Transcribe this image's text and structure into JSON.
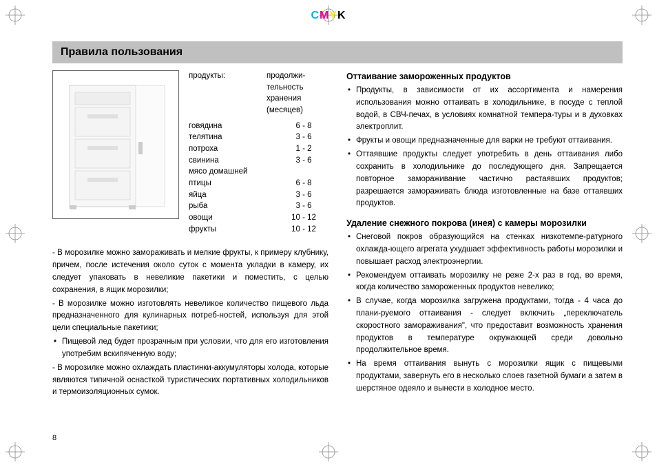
{
  "header": {
    "cmyk": {
      "c": "C",
      "m": "M",
      "y": "Y",
      "k": "K"
    }
  },
  "section_title": "Правила пользования",
  "storage_table": {
    "header": {
      "products": "продукты:",
      "duration": "продолжи-\nтельность хранения (месяцев)"
    },
    "rows": [
      {
        "name": "говядина",
        "months": "6 - 8"
      },
      {
        "name": "телятина",
        "months": "3 - 6"
      },
      {
        "name": "потроха",
        "months": "1 - 2"
      },
      {
        "name": "свинина",
        "months": "3 - 6"
      },
      {
        "name": "мясо домашней",
        "months": ""
      },
      {
        "name": "птицы",
        "months": "6 - 8"
      },
      {
        "name": "яйца",
        "months": "3 - 6"
      },
      {
        "name": "рыба",
        "months": "3 - 6"
      },
      {
        "name": "овощи",
        "months": "10 - 12"
      },
      {
        "name": "фрукты",
        "months": "10 - 12"
      }
    ]
  },
  "left_body": {
    "p1": "- В морозилке можно замораживать и мелкие фрукты, к примеру клубнику, причем, после истечения около суток с момента укладки в камеру, их следует упаковать в невеликие пакетики и поместить, с целью сохранения, в  ящик морозилки;",
    "p2": "- В морозилке можно изготовлять невеликое количество пищевого льда предназначенного для кулинарных потреб-ностей, используя для этой цели специальные пакетики;",
    "b1": "Пищевой лед будет прозрачным при условии, что для его изготовления употребим вскипяченную воду;",
    "p3": "- В морозилке можно охлаждать пластинки-аккумуляторы холода, которые являются типичной оснасткой туристических портативных холодильников и термоизоляционных сумок."
  },
  "right_col": {
    "h1": "Оттаивание замороженных продуктов",
    "s1": {
      "b1": "Продукты, в зависимости от их ассортимента и намерения использования можно оттаивать в холодильнике, в посуде с теплой водой, в СВЧ-печах, в условиях комнатной темпера-туры и в духовках электроплит.",
      "b2": "Фрукты и овощи предназначенные для варки не требуют оттаивания.",
      "b3": "Оттаявшие продукты следует употребить в день оттаивания либо сохранить в холодильнике до последующего дня. Запрещается повторное замораживание частично растаявших продуктов; разрешается замораживать блюда изготовленные на базе оттаявших продуктов."
    },
    "h2": "Удаление снежного покрова (инея) с камеры морозилки",
    "s2": {
      "b1": "Снеговой покров образующийся на стенках низкотемпе-ратурного охлажда-ющего агрегата ухудшает эффективность работы морозилки и повышает расход электроэнергии.",
      "b2": "Рекомендуем оттаивать морозилку не реже 2-х раз в год, во время, когда количество замороженных продуктов невелико;",
      "b3": "В случае, когда морозилка загружена продуктами, тогда - 4 часа до плани-руемого оттаивания - следует включить „переключатель скоростного замораживания\", что предоставит возможность хранения продуктов в температуре окружающей среди довольно продолжительное время.",
      "b4": "На время оттаивания вынуть с морозилки ящик с пищевыми продуктами, завернуть его в несколько слоев газетной бумаги а затем в шерстяное одеяло и вынести в холодное место."
    }
  },
  "page_number": "8"
}
